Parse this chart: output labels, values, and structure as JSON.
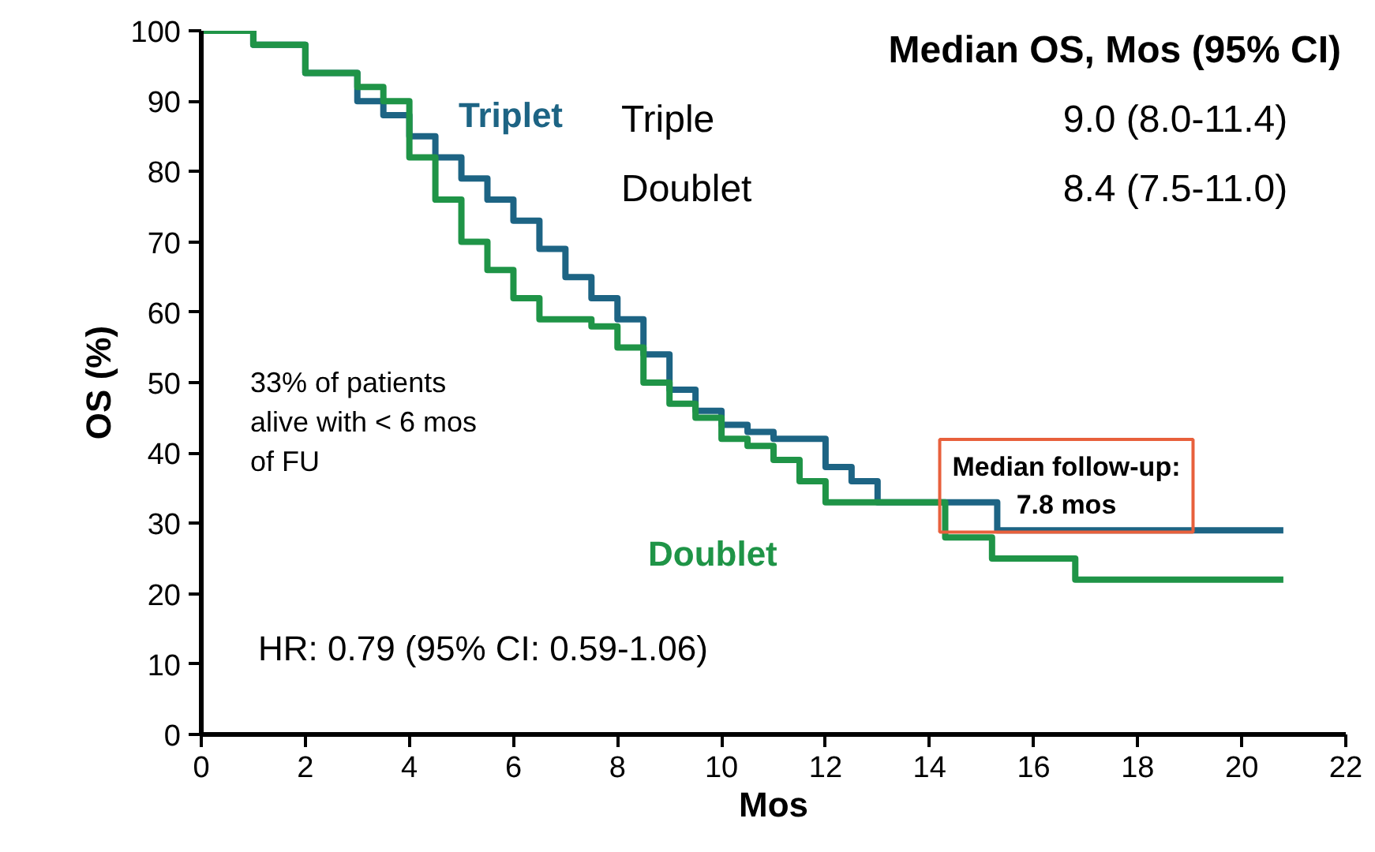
{
  "chart_data": {
    "type": "step",
    "xlabel": "Mos",
    "ylabel": "OS (%)",
    "xlim": [
      0,
      22
    ],
    "xticks": [
      0,
      2,
      4,
      6,
      8,
      10,
      12,
      14,
      16,
      18,
      20,
      22
    ],
    "ylim": [
      0,
      100
    ],
    "yticks": [
      0,
      10,
      20,
      30,
      40,
      50,
      60,
      70,
      80,
      90,
      100
    ],
    "grid": false,
    "line_style": "solid",
    "series": [
      {
        "name": "Triplet",
        "color": "#1d6484",
        "x": [
          0,
          1,
          2,
          3,
          3.5,
          4,
          4.5,
          5,
          5.5,
          6,
          6.5,
          7,
          7.5,
          8,
          8.5,
          9,
          9.5,
          10,
          10.5,
          11,
          12,
          12.5,
          13,
          15.3,
          20.8
        ],
        "values": [
          100,
          98,
          94,
          90,
          88,
          85,
          82,
          79,
          76,
          73,
          69,
          65,
          62,
          59,
          54,
          49,
          46,
          44,
          43,
          42,
          38,
          36,
          33,
          29,
          29
        ]
      },
      {
        "name": "Doublet",
        "color": "#1f9447",
        "x": [
          0,
          1,
          2,
          3,
          3.5,
          4,
          4.5,
          5,
          5.5,
          6,
          6.5,
          7.5,
          8,
          8.5,
          9,
          9.5,
          10,
          10.5,
          11,
          11.5,
          12,
          14.3,
          15.2,
          16.8,
          20.8
        ],
        "values": [
          100,
          98,
          94,
          92,
          90,
          82,
          76,
          70,
          66,
          62,
          59,
          58,
          55,
          50,
          47,
          45,
          42,
          41,
          39,
          36,
          33,
          28,
          25,
          22,
          22
        ]
      }
    ],
    "annotations": [
      "Median OS, Mos (95% CI)",
      "Triple",
      "Doublet",
      "9.0 (8.0-11.4)",
      "8.4 (7.5-11.0)",
      "Median follow-up:\n7.8 mos",
      "33% of patients\nalive with < 6 mos\nof FU",
      "HR: 0.79 (95% CI: 0.59-1.06)"
    ]
  }
}
